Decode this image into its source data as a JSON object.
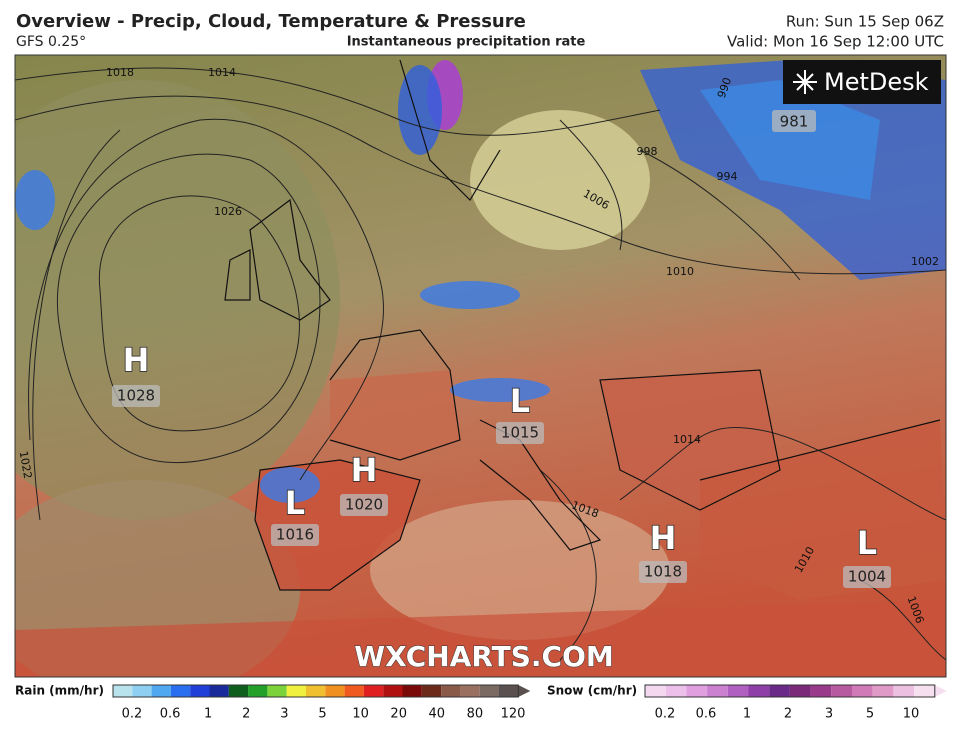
{
  "header": {
    "title": "Overview - Precip, Cloud, Temperature & Pressure",
    "model": "GFS 0.25°",
    "product": "Instantaneous precipitation rate",
    "run": "Run: Sun 15 Sep 06Z",
    "valid": "Valid: Mon 16 Sep 12:00 UTC"
  },
  "logo": "MetDesk",
  "watermark": "WXCHARTS.COM",
  "pressure_centers": [
    {
      "type": "H",
      "value": "1028"
    },
    {
      "type": "H",
      "value": "1020"
    },
    {
      "type": "L",
      "value": "1016"
    },
    {
      "type": "L",
      "value": "1015"
    },
    {
      "type": "H",
      "value": "1018"
    },
    {
      "type": "L",
      "value": "1004"
    }
  ],
  "low_value": "981",
  "isobar_labels": [
    "1018",
    "1014",
    "1026",
    "1022",
    "1006",
    "1010",
    "1002",
    "994",
    "990",
    "998",
    "1014",
    "1018",
    "1010",
    "1006"
  ],
  "legend": {
    "rain": {
      "label": "Rain (mm/hr)",
      "ticks": [
        "0.2",
        "0.6",
        "1",
        "2",
        "3",
        "5",
        "10",
        "20",
        "40",
        "80",
        "120"
      ]
    },
    "snow": {
      "label": "Snow (cm/hr)",
      "ticks": [
        "0.2",
        "0.6",
        "1",
        "2",
        "3",
        "5",
        "10"
      ]
    }
  }
}
